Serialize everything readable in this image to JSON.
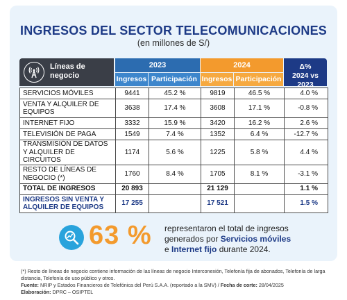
{
  "title": "INGRESOS DEL SECTOR TELECOMUNICACIONES",
  "subtitle": "(en millones de S/)",
  "header": {
    "lines_label_1": "Líneas de",
    "lines_label_2": "negocio",
    "year1": "2023",
    "year2": "2024",
    "col_ingresos": "Ingresos",
    "col_participacion": "Participación",
    "delta_1": "Δ%",
    "delta_2": "2024 vs 2023"
  },
  "colors": {
    "navy": "#1d3a86",
    "blue_2023": "#2c6cb0",
    "orange_2024": "#f39a2d",
    "dark_header": "#3a3e47",
    "panel_bg": "#eaf3fb"
  },
  "chart_data": {
    "type": "table",
    "columns": [
      "Líneas de negocio",
      "2023 Ingresos",
      "2023 Participación",
      "2024 Ingresos",
      "2024 Participación",
      "Δ% 2024 vs 2023"
    ],
    "rows": [
      {
        "name": "SERVICIOS MÓVILES",
        "i23": "9441",
        "p23": "45.2 %",
        "i24": "9819",
        "p24": "46.5 %",
        "delta": "4.0 %"
      },
      {
        "name": "VENTA Y ALQUILER DE EQUIPOS",
        "i23": "3638",
        "p23": "17.4 %",
        "i24": "3608",
        "p24": "17.1 %",
        "delta": "-0.8 %"
      },
      {
        "name": "INTERNET FIJO",
        "i23": "3332",
        "p23": "15.9 %",
        "i24": "3420",
        "p24": "16.2 %",
        "delta": "2.6 %"
      },
      {
        "name": "TELEVISIÓN DE PAGA",
        "i23": "1549",
        "p23": "7.4 %",
        "i24": "1352",
        "p24": "6.4 %",
        "delta": "-12.7 %"
      },
      {
        "name": "TRANSMISIÓN DE DATOS Y ALQUILER DE CIRCUITOS",
        "i23": "1174",
        "p23": "5.6 %",
        "i24": "1225",
        "p24": "5.8 %",
        "delta": "4.4 %"
      },
      {
        "name": "RESTO DE LÍNEAS DE NEGOCIO (*)",
        "i23": "1760",
        "p23": "8.4 %",
        "i24": "1705",
        "p24": "8.1 %",
        "delta": "-3.1 %"
      }
    ],
    "total": {
      "name": "TOTAL DE INGRESOS",
      "i23": "20 893",
      "i24": "21 129",
      "delta": "1.1 %"
    },
    "total_sin_equipos": {
      "name": "INGRESOS SIN VENTA Y ALQUILER DE EQUIPOS",
      "i23": "17 255",
      "i24": "17 521",
      "delta": "1.5 %"
    }
  },
  "highlight": {
    "value": "63 %",
    "text_1": "representaron el total de ingresos",
    "text_2": "generados por ",
    "bold_1": "Servicios móviles",
    "text_3": "e ",
    "bold_2": "Internet fijo",
    "text_4": " durante 2024."
  },
  "notes": {
    "note": "(*) Resto de líneas de negocio contiene información de las líneas de negocio Interconexión, Telefonía fija de abonados, Telefonía de larga distancia, Telefonía de uso público y otros.",
    "source_label": "Fuente:",
    "source": " NRIP y Estados Financieros de Telefónica del Perú S.A.A. (reportado a la SMV) / ",
    "cutoff_label": "Fecha de corte:",
    "cutoff": " 28/04/2025",
    "prepared_label": "Elaboración:",
    "prepared": " DPRC – OSIPTEL"
  }
}
